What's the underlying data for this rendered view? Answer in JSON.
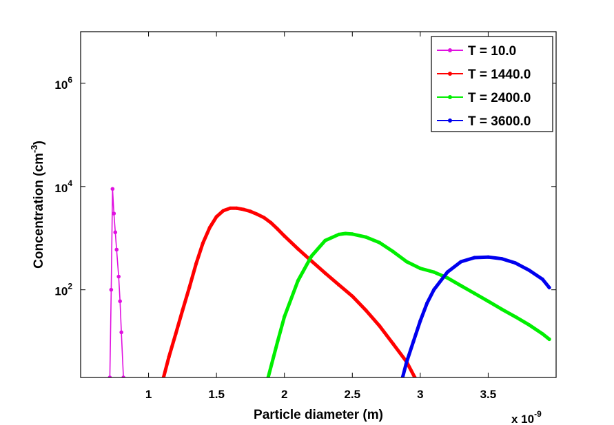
{
  "chart_data": {
    "type": "line",
    "xlabel": "Particle diameter (m)",
    "ylabel": "Concentration (cm",
    "ylabel_unit_exponent": "-3",
    "ylabel_close": ")",
    "x_multiplier_base": "x 10",
    "x_multiplier_exponent": "-9",
    "xlim": [
      0.5,
      4.0
    ],
    "ylim": [
      2,
      10000000
    ],
    "yscale": "log",
    "grid": false,
    "legend_position": "top-right",
    "x_ticks": [
      {
        "value": 1,
        "label": "1"
      },
      {
        "value": 1.5,
        "label": "1.5"
      },
      {
        "value": 2,
        "label": "2"
      },
      {
        "value": 2.5,
        "label": "2.5"
      },
      {
        "value": 3,
        "label": "3"
      },
      {
        "value": 3.5,
        "label": "3.5"
      }
    ],
    "y_ticks": [
      {
        "value": 100,
        "base": "10",
        "exp": "2"
      },
      {
        "value": 10000,
        "base": "10",
        "exp": "4"
      },
      {
        "value": 1000000,
        "base": "10",
        "exp": "6"
      }
    ],
    "series": [
      {
        "name": "T = 10.0",
        "color": "#e010e0",
        "marker": "dot",
        "x": [
          0.715,
          0.725,
          0.735,
          0.745,
          0.755,
          0.765,
          0.78,
          0.79,
          0.8,
          0.815
        ],
        "y": [
          2,
          100,
          9000,
          3000,
          1300,
          600,
          180,
          60,
          15,
          2
        ]
      },
      {
        "name": "T = 1440.0",
        "color": "#ff0000",
        "marker": "dot",
        "x": [
          1.11,
          1.15,
          1.2,
          1.25,
          1.3,
          1.35,
          1.4,
          1.45,
          1.5,
          1.55,
          1.6,
          1.65,
          1.7,
          1.75,
          1.8,
          1.85,
          1.9,
          1.95,
          2.0,
          2.1,
          2.2,
          2.3,
          2.4,
          2.5,
          2.6,
          2.7,
          2.8,
          2.9,
          2.96
        ],
        "y": [
          2,
          5,
          14,
          40,
          110,
          320,
          800,
          1600,
          2600,
          3400,
          3800,
          3800,
          3600,
          3300,
          2900,
          2500,
          2000,
          1500,
          1100,
          620,
          360,
          210,
          125,
          75,
          40,
          20,
          9,
          4,
          2
        ]
      },
      {
        "name": "T = 2400.0",
        "color": "#00ee00",
        "marker": "dot",
        "x": [
          1.88,
          1.95,
          2.0,
          2.1,
          2.2,
          2.3,
          2.4,
          2.45,
          2.5,
          2.6,
          2.7,
          2.8,
          2.9,
          3.0,
          3.1,
          3.2,
          3.3,
          3.4,
          3.5,
          3.6,
          3.7,
          3.8,
          3.9,
          3.95
        ],
        "y": [
          2,
          10,
          30,
          150,
          450,
          900,
          1180,
          1230,
          1200,
          1050,
          820,
          550,
          350,
          260,
          220,
          170,
          120,
          85,
          60,
          42,
          30,
          21,
          14,
          11
        ]
      },
      {
        "name": "T = 3600.0",
        "color": "#0000ee",
        "marker": "dot",
        "x": [
          2.87,
          2.9,
          2.95,
          3.0,
          3.05,
          3.1,
          3.2,
          3.3,
          3.4,
          3.5,
          3.6,
          3.7,
          3.8,
          3.9,
          3.95
        ],
        "y": [
          2,
          4,
          10,
          25,
          55,
          100,
          220,
          350,
          420,
          430,
          400,
          330,
          240,
          160,
          110
        ]
      }
    ]
  }
}
